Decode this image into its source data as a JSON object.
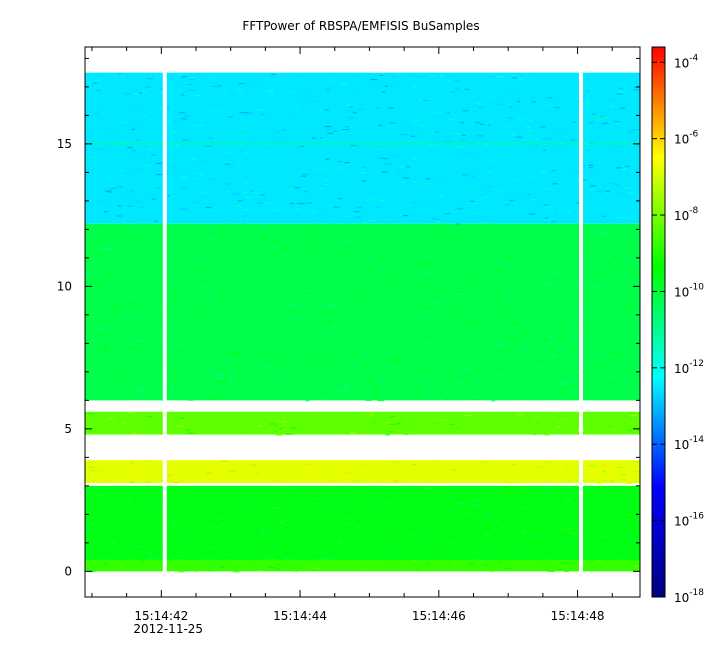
{
  "chart_data": {
    "type": "heatmap",
    "title": "FFTPower of RBSPA/EMFISIS  BuSamples",
    "xlabel": "",
    "ylabel": "",
    "x_ticks": [
      {
        "value": 42,
        "label": "15:14:42",
        "sublabel": "2012-11-25"
      },
      {
        "value": 44,
        "label": "15:14:44",
        "sublabel": ""
      },
      {
        "value": 46,
        "label": "15:14:46",
        "sublabel": ""
      },
      {
        "value": 48,
        "label": "15:14:48",
        "sublabel": ""
      }
    ],
    "xlim": [
      40.9,
      48.9
    ],
    "ylim": [
      -0.9,
      18.4
    ],
    "y_ticks": [
      {
        "value": 0,
        "label": "0"
      },
      {
        "value": 5,
        "label": "5"
      },
      {
        "value": 10,
        "label": "10"
      },
      {
        "value": 15,
        "label": "15"
      }
    ],
    "data_extent": {
      "y_max": 17.5,
      "y_min": 0.0
    },
    "gaps_x": [
      42.05,
      48.05
    ],
    "bands": [
      {
        "y_range": [
          12.2,
          17.5
        ],
        "log10_power": -12.5
      },
      {
        "y_range": [
          6.0,
          12.2
        ],
        "log10_power": -10.2
      },
      {
        "y_range": [
          4.8,
          5.6
        ],
        "log10_power": -8.3
      },
      {
        "y_range": [
          3.1,
          3.9
        ],
        "log10_power": -6.8
      },
      {
        "y_range": [
          0.0,
          0.4
        ],
        "log10_power": -8.8
      },
      {
        "y_range": [
          0.4,
          3.0
        ],
        "log10_power": -9.6
      }
    ],
    "line_feature": {
      "y": 15.0,
      "log10_power": -11.0
    },
    "colorbar": {
      "scale": "log",
      "range_exponent": [
        -18,
        -3.6
      ],
      "tick_base": "10",
      "ticks": [
        {
          "exponent": -4,
          "label": "-4"
        },
        {
          "exponent": -6,
          "label": "-6"
        },
        {
          "exponent": -8,
          "label": "-8"
        },
        {
          "exponent": -10,
          "label": "-10"
        },
        {
          "exponent": -12,
          "label": "-12"
        },
        {
          "exponent": -14,
          "label": "-14"
        },
        {
          "exponent": -16,
          "label": "-16"
        },
        {
          "exponent": -18,
          "label": "-18"
        }
      ],
      "colormap": [
        "#000080",
        "#0000ff",
        "#00ffff",
        "#00ff00",
        "#ffff00",
        "#ff0000"
      ]
    }
  }
}
